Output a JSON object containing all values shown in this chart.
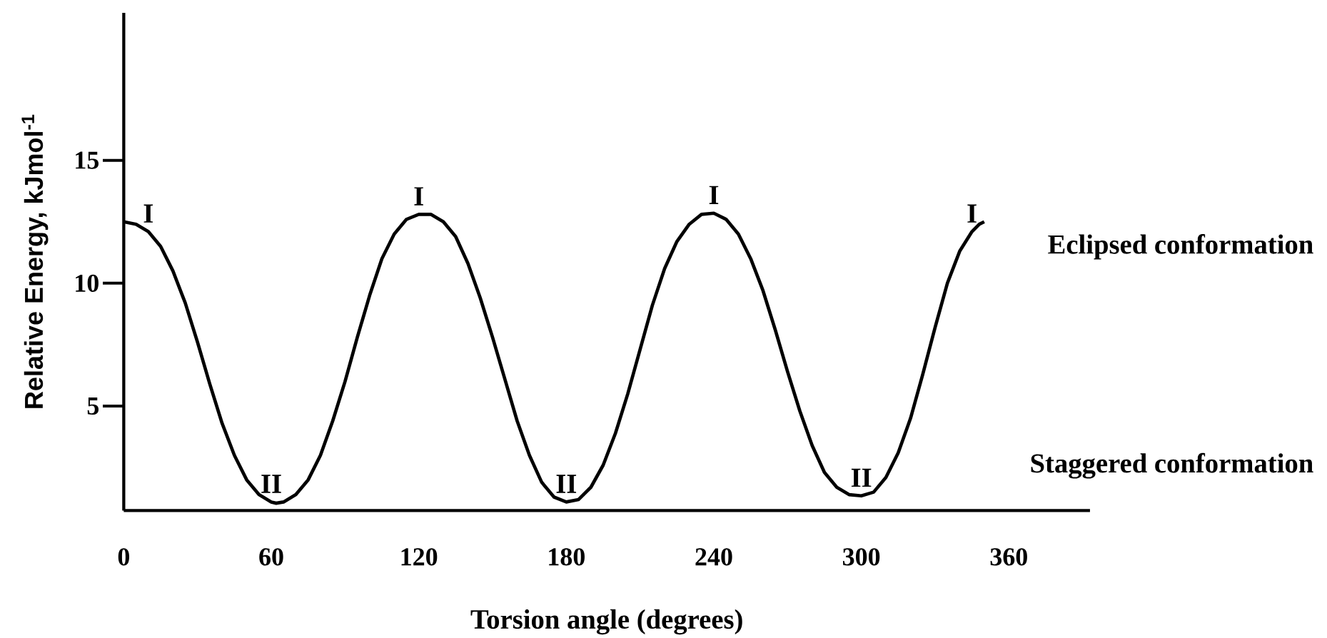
{
  "chart_data": {
    "type": "line",
    "xlabel": "Torsion angle (degrees)",
    "ylabel": "Relative Energy,  kJmol$^{-1}$",
    "x": [
      0,
      5,
      10,
      15,
      20,
      25,
      30,
      35,
      40,
      45,
      50,
      55,
      60,
      62,
      65,
      70,
      75,
      80,
      85,
      90,
      95,
      100,
      105,
      110,
      115,
      120,
      125,
      130,
      135,
      140,
      145,
      150,
      155,
      160,
      165,
      170,
      175,
      180,
      185,
      190,
      195,
      200,
      205,
      210,
      215,
      220,
      225,
      230,
      235,
      240,
      245,
      250,
      255,
      260,
      265,
      270,
      275,
      280,
      285,
      290,
      295,
      300,
      305,
      310,
      315,
      320,
      325,
      330,
      335,
      340,
      345,
      348,
      350
    ],
    "series": [
      {
        "color": "#000000",
        "values": [
          12.5,
          12.4,
          12.1,
          11.5,
          10.5,
          9.2,
          7.6,
          5.9,
          4.3,
          3.0,
          2.0,
          1.4,
          1.1,
          1.05,
          1.1,
          1.4,
          2.0,
          3.0,
          4.4,
          6.0,
          7.8,
          9.5,
          11.0,
          12.0,
          12.6,
          12.8,
          12.8,
          12.5,
          11.9,
          10.8,
          9.4,
          7.8,
          6.1,
          4.4,
          3.0,
          1.9,
          1.3,
          1.1,
          1.2,
          1.7,
          2.6,
          3.9,
          5.5,
          7.3,
          9.1,
          10.6,
          11.7,
          12.4,
          12.8,
          12.85,
          12.6,
          12.0,
          11.0,
          9.7,
          8.1,
          6.4,
          4.8,
          3.4,
          2.3,
          1.7,
          1.4,
          1.35,
          1.5,
          2.1,
          3.1,
          4.5,
          6.3,
          8.2,
          10.0,
          11.3,
          12.1,
          12.4,
          12.5
        ]
      }
    ],
    "xlim": [
      0,
      393
    ],
    "ylim": [
      0.75,
      21
    ],
    "xticks": [
      0,
      60,
      120,
      180,
      240,
      300,
      360
    ],
    "yticks": [
      5,
      10,
      15
    ],
    "grid": false,
    "marker": "none",
    "line_style": "solid",
    "annotations": [
      {
        "text": "I",
        "x": 10,
        "y": 12.1
      },
      {
        "text": "I",
        "x": 120,
        "y": 12.8
      },
      {
        "text": "I",
        "x": 240,
        "y": 12.85
      },
      {
        "text": "I",
        "x": 345,
        "y": 12.1
      },
      {
        "text": "II",
        "x": 60,
        "y": 1.1
      },
      {
        "text": "II",
        "x": 180,
        "y": 1.1
      },
      {
        "text": "II",
        "x": 300,
        "y": 1.35
      },
      "Eclipsed conformation",
      "Staggered conformation"
    ]
  }
}
